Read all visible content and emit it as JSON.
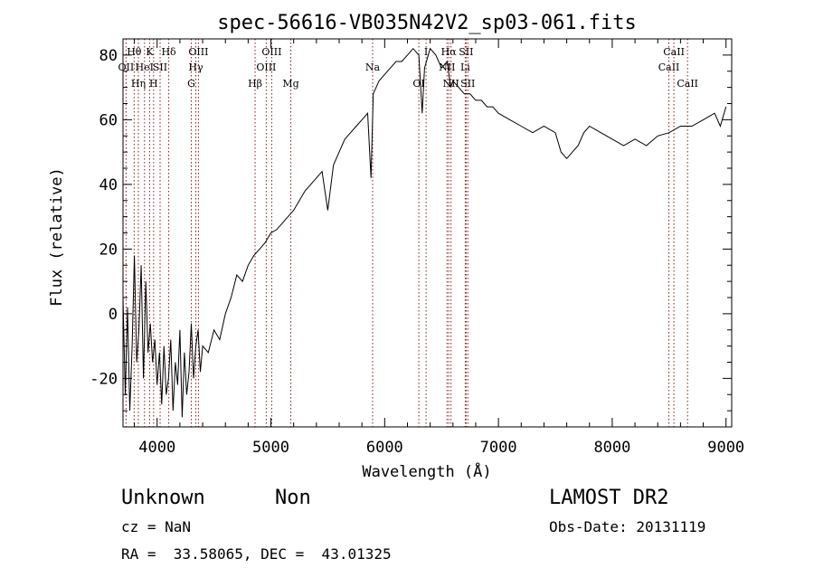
{
  "chart_data": {
    "type": "line",
    "title": "spec-56616-VB035N42V2_sp03-061.fits",
    "xlabel": "Wavelength (Å)",
    "ylabel": "Flux (relative)",
    "xlim": [
      3700,
      9050
    ],
    "ylim": [
      -35,
      85
    ],
    "x_ticks": [
      4000,
      5000,
      6000,
      7000,
      8000,
      9000
    ],
    "y_ticks": [
      -20,
      0,
      20,
      40,
      60,
      80
    ],
    "line_color": "#000000",
    "marker_color": "#8b1a1a",
    "series": [
      {
        "x": [
          3700,
          3720,
          3740,
          3760,
          3780,
          3800,
          3820,
          3840,
          3860,
          3880,
          3900,
          3920,
          3940,
          3960,
          3980,
          4000,
          4020,
          4040,
          4060,
          4080,
          4100,
          4120,
          4140,
          4160,
          4180,
          4200,
          4220,
          4240,
          4260,
          4280,
          4300,
          4320,
          4340,
          4360,
          4380,
          4400,
          4450,
          4500,
          4550,
          4600,
          4650,
          4700,
          4750,
          4800,
          4850,
          4900,
          4950,
          5000,
          5050,
          5100,
          5150,
          5200,
          5250,
          5300,
          5350,
          5400,
          5450,
          5500,
          5550,
          5600,
          5650,
          5700,
          5750,
          5800,
          5850,
          5880,
          5900,
          5950,
          6000,
          6050,
          6100,
          6150,
          6200,
          6250,
          6300,
          6330,
          6350,
          6400,
          6450,
          6500,
          6550,
          6580,
          6600,
          6650,
          6700,
          6750,
          6800,
          6850,
          6900,
          6950,
          7000,
          7100,
          7200,
          7300,
          7400,
          7500,
          7550,
          7600,
          7650,
          7700,
          7750,
          7800,
          7900,
          8000,
          8100,
          8200,
          8300,
          8400,
          8500,
          8600,
          8700,
          8800,
          8900,
          8950,
          9000
        ],
        "y": [
          5,
          -25,
          2,
          -30,
          -10,
          18,
          -15,
          -5,
          15,
          -20,
          10,
          -12,
          -3,
          -15,
          -8,
          -22,
          -12,
          -28,
          -10,
          -25,
          -20,
          -8,
          -30,
          -15,
          -22,
          -5,
          -32,
          -12,
          -25,
          -18,
          -3,
          -20,
          -10,
          -5,
          -18,
          -10,
          -12,
          -5,
          -8,
          0,
          5,
          12,
          10,
          15,
          18,
          20,
          22,
          25,
          26,
          28,
          30,
          32,
          35,
          38,
          40,
          42,
          44,
          32,
          46,
          50,
          54,
          56,
          58,
          60,
          62,
          42,
          68,
          72,
          74,
          76,
          78,
          78,
          80,
          82,
          80,
          62,
          76,
          82,
          80,
          76,
          78,
          70,
          72,
          70,
          68,
          68,
          66,
          66,
          64,
          64,
          62,
          60,
          58,
          56,
          58,
          56,
          50,
          48,
          50,
          52,
          56,
          58,
          56,
          54,
          52,
          54,
          52,
          55,
          56,
          58,
          58,
          60,
          62,
          58,
          64
        ]
      }
    ],
    "lines": [
      {
        "x": 3727,
        "label": "OII",
        "row": 2,
        "color": "#8b1a1a"
      },
      {
        "x": 3798,
        "label": "Hθ",
        "row": 1,
        "color": "#8b1a1a"
      },
      {
        "x": 3835,
        "label": "Hη",
        "row": 3,
        "color": "#8b1a1a"
      },
      {
        "x": 3889,
        "label": "HeI",
        "row": 2,
        "color": "#8b1a1a"
      },
      {
        "x": 3934,
        "label": "K",
        "row": 1,
        "color": "#8b1a1a"
      },
      {
        "x": 3969,
        "label": "H",
        "row": 3,
        "color": "#8b1a1a"
      },
      {
        "x": 4026,
        "label": "SII",
        "row": 2,
        "color": "#8b1a1a"
      },
      {
        "x": 4102,
        "label": "Hδ",
        "row": 1,
        "color": "#8b1a1a"
      },
      {
        "x": 4300,
        "label": "G",
        "row": 3,
        "color": "#8b1a1a"
      },
      {
        "x": 4340,
        "label": "Hγ",
        "row": 2,
        "color": "#8b1a1a"
      },
      {
        "x": 4363,
        "label": "OIII",
        "row": 1,
        "color": "#8b1a1a"
      },
      {
        "x": 4861,
        "label": "Hβ",
        "row": 3,
        "color": "#8b1a1a"
      },
      {
        "x": 4959,
        "label": "OIII",
        "row": 2,
        "color": "#8b1a1a"
      },
      {
        "x": 5007,
        "label": "OIII",
        "row": 1,
        "color": "#8b1a1a"
      },
      {
        "x": 5175,
        "label": "Mg",
        "row": 3,
        "color": "#8b1a1a"
      },
      {
        "x": 5894,
        "label": "Na",
        "row": 2,
        "color": "#8b1a1a"
      },
      {
        "x": 6300,
        "label": "OI",
        "row": 3,
        "color": "#8b1a1a"
      },
      {
        "x": 6364,
        "label": "I",
        "row": 1,
        "color": "#8b1a1a"
      },
      {
        "x": 6548,
        "label": "NII",
        "row": 2,
        "color": "#8b1a1a"
      },
      {
        "x": 6563,
        "label": "Hα",
        "row": 1,
        "color": "#8b1a1a"
      },
      {
        "x": 6583,
        "label": "NII",
        "row": 3,
        "color": "#8b1a1a"
      },
      {
        "x": 6708,
        "label": "Li",
        "row": 2,
        "color": "#8b1a1a"
      },
      {
        "x": 6716,
        "label": "SII",
        "row": 1,
        "color": "#8b1a1a"
      },
      {
        "x": 6731,
        "label": "SII",
        "row": 3,
        "color": "#8b1a1a"
      },
      {
        "x": 8498,
        "label": "CaII",
        "row": 2,
        "color": "#8b1a1a"
      },
      {
        "x": 8542,
        "label": "CaII",
        "row": 1,
        "color": "#8b1a1a"
      },
      {
        "x": 8662,
        "label": "CaII",
        "row": 3,
        "color": "#8b1a1a"
      }
    ]
  },
  "info": {
    "object_class": "Unknown",
    "subclass": "Non",
    "cz": "cz = NaN",
    "radec": "RA =  33.58065, DEC =  43.01325",
    "survey": "LAMOST DR2",
    "obs_date": "Obs-Date: 20131119"
  }
}
